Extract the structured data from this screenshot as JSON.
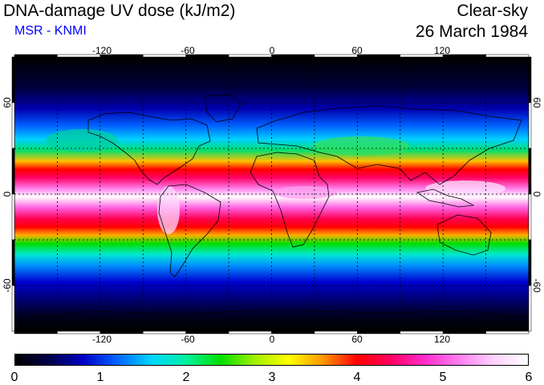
{
  "header": {
    "title": "DNA-damage UV dose (kJ/m2)",
    "subtitle": "MSR - KNMI",
    "scene": "Clear-sky",
    "date": "26 March 1984"
  },
  "axes": {
    "lon_ticks": [
      "-120",
      "-60",
      "0",
      "60",
      "120"
    ],
    "lat_ticks_left": [
      "60",
      "0",
      "-60"
    ],
    "lat_ticks_right": [
      "60",
      "0",
      "-60"
    ]
  },
  "colorbar": {
    "ticks": [
      "0",
      "1",
      "2",
      "3",
      "4",
      "5",
      "6"
    ],
    "min": 0,
    "max": 6,
    "colors": [
      "#000000",
      "#00004a",
      "#0000c8",
      "#0066ff",
      "#00d8ff",
      "#00f0a0",
      "#00e000",
      "#a0f000",
      "#ffff00",
      "#ff9600",
      "#ff0000",
      "#ff0064",
      "#ff2ecc",
      "#ff80f0",
      "#ffd0ff",
      "#ffffff"
    ]
  },
  "map_layer": {
    "lon_range": [
      -180,
      180
    ],
    "lat_range": [
      -90,
      90
    ],
    "grid_lon": [
      -150,
      -120,
      -90,
      -60,
      -30,
      0,
      30,
      60,
      90,
      120,
      150
    ],
    "grid_lat": [
      -60,
      -30,
      0,
      30,
      60
    ],
    "colors": {
      "frame": "#000000",
      "coastline": "#000000",
      "gridline": "#000000"
    }
  }
}
